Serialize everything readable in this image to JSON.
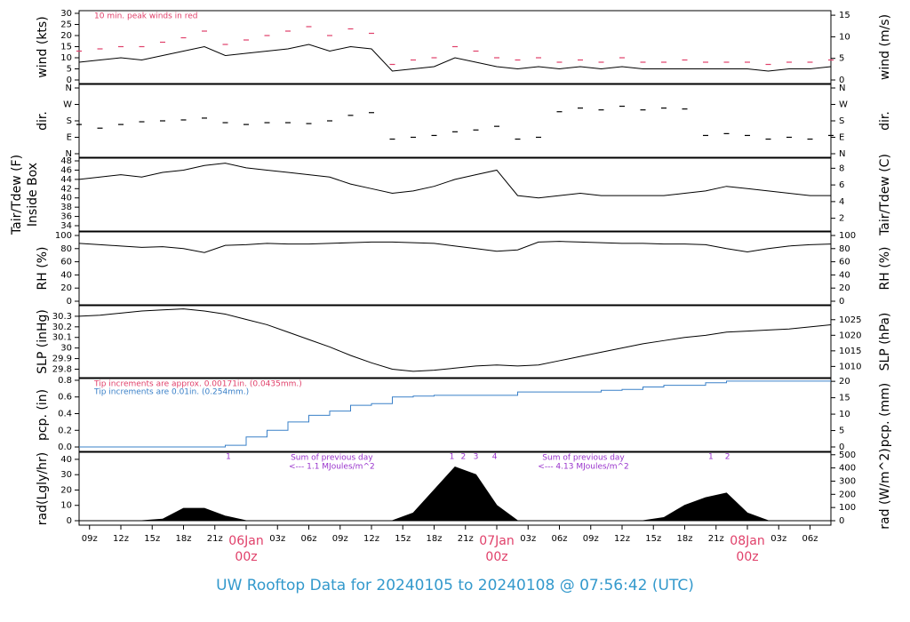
{
  "title": "UW Rooftop Data for 20240105  to  20240108 @ 07:56:42  (UTC)",
  "chart_data": [
    {
      "type": "line",
      "ylabel": [
        "wind (kts)"
      ],
      "y2label": "wind (m/s)",
      "ylim": [
        -1.6,
        31.2
      ],
      "yticks": [
        0,
        5,
        10,
        15,
        20,
        25,
        30
      ],
      "y2lim": [
        -0.82,
        16.05
      ],
      "y2ticks": [
        0,
        5,
        10,
        15
      ],
      "xlim": [
        8,
        80
      ],
      "annotations": [
        {
          "text": "10 min. peak winds in red",
          "color": "#e0406a"
        }
      ],
      "series": [
        {
          "name": "wind",
          "type": "line",
          "color": "#000000",
          "x": [
            8,
            10,
            12,
            14,
            16,
            18,
            20,
            22,
            24,
            26,
            28,
            30,
            32,
            34,
            36,
            38,
            40,
            42,
            44,
            46,
            48,
            50,
            52,
            54,
            56,
            58,
            60,
            62,
            64,
            66,
            68,
            70,
            72,
            74,
            76,
            78,
            80
          ],
          "values": [
            8,
            9,
            10,
            9,
            11,
            13,
            15,
            11,
            12,
            13,
            14,
            16,
            13,
            15,
            14,
            4,
            5,
            6,
            10,
            8,
            6,
            5,
            6,
            5,
            6,
            5,
            6,
            5,
            5,
            5,
            5,
            5,
            5,
            4,
            5,
            5,
            6
          ]
        },
        {
          "name": "peak",
          "type": "dash",
          "color": "#e0406a",
          "x": [
            8,
            10,
            12,
            14,
            16,
            18,
            20,
            22,
            24,
            26,
            28,
            30,
            32,
            34,
            36,
            38,
            40,
            42,
            44,
            46,
            48,
            50,
            52,
            54,
            56,
            58,
            60,
            62,
            64,
            66,
            68,
            70,
            72,
            74,
            76,
            78,
            80
          ],
          "values": [
            13,
            14,
            15,
            15,
            17,
            19,
            22,
            16,
            18,
            20,
            22,
            24,
            20,
            23,
            21,
            7,
            9,
            10,
            15,
            13,
            10,
            9,
            10,
            8,
            9,
            8,
            10,
            8,
            8,
            9,
            8,
            8,
            8,
            7,
            8,
            8,
            9
          ]
        }
      ]
    },
    {
      "type": "scatter",
      "ylabel": [
        "dir."
      ],
      "y2label": "dir.",
      "ylim": [
        -19.5,
        379.5
      ],
      "yticks": [
        {
          "value": 0,
          "label": "N"
        },
        {
          "value": 90,
          "label": "E"
        },
        {
          "value": 180,
          "label": "S"
        },
        {
          "value": 270,
          "label": "W"
        },
        {
          "value": 360,
          "label": "N"
        }
      ],
      "y2lim": [
        -19.5,
        379.5
      ],
      "y2ticks": [
        {
          "value": 0,
          "label": "N"
        },
        {
          "value": 90,
          "label": "E"
        },
        {
          "value": 180,
          "label": "S"
        },
        {
          "value": 270,
          "label": "W"
        },
        {
          "value": 360,
          "label": "N"
        }
      ],
      "xlim": [
        8,
        80
      ],
      "series": [
        {
          "name": "dir",
          "type": "dash",
          "color": "#000000",
          "x": [
            8,
            10,
            12,
            14,
            16,
            18,
            20,
            22,
            24,
            26,
            28,
            30,
            32,
            34,
            36,
            38,
            40,
            42,
            44,
            46,
            48,
            50,
            52,
            54,
            56,
            58,
            60,
            62,
            64,
            66,
            68,
            70,
            72,
            74,
            76,
            78,
            80
          ],
          "values": [
            160,
            140,
            160,
            175,
            180,
            185,
            195,
            170,
            160,
            170,
            170,
            165,
            180,
            210,
            225,
            80,
            90,
            100,
            120,
            130,
            150,
            80,
            90,
            230,
            250,
            240,
            260,
            240,
            250,
            245,
            100,
            110,
            100,
            80,
            90,
            80,
            100
          ]
        }
      ]
    },
    {
      "type": "line",
      "ylabel": [
        "Tair/Tdew (F)",
        "Inside Box"
      ],
      "y2label": "Tair/Tdew (C)",
      "ylim": [
        32.85,
        48.58
      ],
      "yticks": [
        34,
        36,
        38,
        40,
        42,
        44,
        46,
        48
      ],
      "y2lim": [
        0.47,
        9.21
      ],
      "y2ticks": [
        2,
        4,
        6,
        8
      ],
      "xlim": [
        8,
        80
      ],
      "series": [
        {
          "name": "temperature",
          "type": "line",
          "color": "#000000",
          "x": [
            8,
            10,
            12,
            14,
            16,
            18,
            20,
            22,
            24,
            26,
            28,
            30,
            32,
            34,
            36,
            38,
            40,
            42,
            44,
            46,
            48,
            50,
            52,
            54,
            56,
            58,
            60,
            62,
            64,
            66,
            68,
            70,
            72,
            74,
            76,
            78,
            80
          ],
          "values": [
            44,
            44.5,
            45,
            44.5,
            45.5,
            46,
            47,
            47.5,
            46.5,
            46,
            45.5,
            45,
            44.5,
            43,
            42,
            41,
            41.5,
            42.5,
            44,
            45,
            46,
            40.5,
            40,
            40.5,
            41,
            40.5,
            40.5,
            40.5,
            40.5,
            41,
            41.5,
            42.5,
            42,
            41.5,
            41,
            40.5,
            40.5
          ]
        }
      ]
    },
    {
      "type": "line",
      "ylabel": [
        "RH (%)"
      ],
      "y2label": "RH (%)",
      "ylim": [
        -5.4,
        105.4
      ],
      "yticks": [
        0,
        20,
        40,
        60,
        80,
        100
      ],
      "y2lim": [
        -5.4,
        105.4
      ],
      "y2ticks": [
        0,
        20,
        40,
        60,
        80,
        100
      ],
      "xlim": [
        8,
        80
      ],
      "series": [
        {
          "name": "rh",
          "type": "line",
          "color": "#000000",
          "x": [
            8,
            10,
            12,
            14,
            16,
            18,
            20,
            22,
            24,
            26,
            28,
            30,
            32,
            34,
            36,
            38,
            40,
            42,
            44,
            46,
            48,
            50,
            52,
            54,
            56,
            58,
            60,
            62,
            64,
            66,
            68,
            70,
            72,
            74,
            76,
            78,
            80
          ],
          "values": [
            88,
            86,
            84,
            82,
            83,
            80,
            74,
            85,
            86,
            88,
            87,
            87,
            88,
            89,
            90,
            90,
            89,
            88,
            84,
            80,
            76,
            78,
            90,
            91,
            90,
            89,
            88,
            88,
            87,
            87,
            86,
            80,
            75,
            80,
            84,
            86,
            87
          ]
        }
      ]
    },
    {
      "type": "line",
      "ylabel": [
        "SLP (inHg)"
      ],
      "y2label": "SLP (hPa)",
      "ylim": [
        29.72,
        30.4
      ],
      "yticks": [
        29.8,
        29.9,
        30,
        30.1,
        30.2,
        30.3
      ],
      "y2lim": [
        1006.4,
        1029.5
      ],
      "y2ticks": [
        1010,
        1015,
        1020,
        1025
      ],
      "xlim": [
        8,
        80
      ],
      "series": [
        {
          "name": "slp",
          "type": "line",
          "color": "#000000",
          "x": [
            8,
            10,
            12,
            14,
            16,
            18,
            20,
            22,
            24,
            26,
            28,
            30,
            32,
            34,
            36,
            38,
            40,
            42,
            44,
            46,
            48,
            50,
            52,
            54,
            56,
            58,
            60,
            62,
            64,
            66,
            68,
            70,
            72,
            74,
            76,
            78,
            80
          ],
          "values": [
            30.3,
            30.31,
            30.33,
            30.35,
            30.36,
            30.37,
            30.35,
            30.32,
            30.27,
            30.22,
            30.15,
            30.08,
            30.01,
            29.93,
            29.86,
            29.8,
            29.78,
            29.79,
            29.81,
            29.83,
            29.84,
            29.83,
            29.84,
            29.88,
            29.92,
            29.96,
            30,
            30.04,
            30.07,
            30.1,
            30.12,
            30.15,
            30.16,
            30.17,
            30.18,
            30.2,
            30.22
          ]
        }
      ]
    },
    {
      "type": "line",
      "ylabel": [
        "pcp. (in)"
      ],
      "y2label": "pcp. (mm)",
      "ylim": [
        -0.053,
        0.821
      ],
      "yticks": [
        {
          "value": 0,
          "label": "0.0"
        },
        0.2,
        0.4,
        0.6,
        0.8
      ],
      "y2lim": [
        -1.35,
        20.85
      ],
      "y2ticks": [
        0,
        5,
        10,
        15,
        20
      ],
      "xlim": [
        8,
        80
      ],
      "annotations": [
        {
          "text": "Tip increments are approx. 0.00171in. (0.0435mm.)",
          "color": "#e0406a"
        },
        {
          "text": "Tip increments are 0.01in. (0.254mm.)",
          "color": "#3a80c8"
        }
      ],
      "series": [
        {
          "name": "pcp",
          "type": "step",
          "color": "#3a80c8",
          "x": [
            8,
            10,
            12,
            14,
            16,
            18,
            20,
            22,
            24,
            26,
            28,
            30,
            32,
            34,
            36,
            38,
            40,
            42,
            44,
            46,
            48,
            50,
            52,
            54,
            56,
            58,
            60,
            62,
            64,
            66,
            68,
            70,
            72,
            74,
            76,
            78,
            80
          ],
          "values": [
            0,
            0,
            0,
            0,
            0,
            0,
            0,
            0.02,
            0.12,
            0.2,
            0.3,
            0.38,
            0.43,
            0.5,
            0.52,
            0.6,
            0.61,
            0.62,
            0.62,
            0.62,
            0.62,
            0.66,
            0.66,
            0.66,
            0.66,
            0.68,
            0.69,
            0.72,
            0.74,
            0.74,
            0.77,
            0.79,
            0.79,
            0.79,
            0.79,
            0.79,
            0.79
          ]
        }
      ]
    },
    {
      "type": "area",
      "ylabel": [
        "rad(Lgly/hr)"
      ],
      "y2label": "rad (W/m^2)",
      "ylim": [
        -2.9,
        44.6
      ],
      "yticks": [
        0,
        10,
        20,
        30,
        40
      ],
      "y2lim": [
        -33.7,
        518.7
      ],
      "y2ticks": [
        0,
        100,
        200,
        300,
        400,
        500
      ],
      "xlim": [
        8,
        80
      ],
      "xticks": [
        {
          "value": 9,
          "label": "09z"
        },
        {
          "value": 12,
          "label": "12z"
        },
        {
          "value": 15,
          "label": "15z"
        },
        {
          "value": 18,
          "label": "18z"
        },
        {
          "value": 21,
          "label": "21z"
        },
        {
          "value": 27,
          "label": "03z"
        },
        {
          "value": 30,
          "label": "06z"
        },
        {
          "value": 33,
          "label": "09z"
        },
        {
          "value": 36,
          "label": "12z"
        },
        {
          "value": 39,
          "label": "15z"
        },
        {
          "value": 42,
          "label": "18z"
        },
        {
          "value": 45,
          "label": "21z"
        },
        {
          "value": 51,
          "label": "03z"
        },
        {
          "value": 54,
          "label": "06z"
        },
        {
          "value": 57,
          "label": "09z"
        },
        {
          "value": 60,
          "label": "12z"
        },
        {
          "value": 63,
          "label": "15z"
        },
        {
          "value": 66,
          "label": "18z"
        },
        {
          "value": 69,
          "label": "21z"
        },
        {
          "value": 75,
          "label": "03z"
        },
        {
          "value": 78,
          "label": "06z"
        }
      ],
      "day_ticks": [
        {
          "value": 24,
          "date": "06Jan",
          "label": "00z"
        },
        {
          "value": 48,
          "date": "07Jan",
          "label": "00z"
        },
        {
          "value": 72,
          "date": "08Jan",
          "label": "00z"
        }
      ],
      "markers": [
        {
          "x": 22.3,
          "label": "1"
        },
        {
          "x": 43.7,
          "label": "1"
        },
        {
          "x": 44.8,
          "label": "2"
        },
        {
          "x": 46,
          "label": "3"
        },
        {
          "x": 47.8,
          "label": "4"
        },
        {
          "x": 68.5,
          "label": "1"
        },
        {
          "x": 70.1,
          "label": "2"
        }
      ],
      "notes": [
        {
          "x": 32.2,
          "lines": [
            "Sum of previous day",
            "<--- 1.1 MJoules/m^2"
          ]
        },
        {
          "x": 56.3,
          "lines": [
            "Sum of previous day",
            "<--- 4.13 MJoules/m^2"
          ]
        }
      ],
      "series": [
        {
          "name": "rad",
          "type": "area",
          "color": "#000000",
          "x": [
            8,
            10,
            12,
            14,
            16,
            18,
            20,
            22,
            24,
            26,
            28,
            30,
            32,
            34,
            36,
            38,
            40,
            42,
            44,
            46,
            48,
            50,
            52,
            54,
            56,
            58,
            60,
            62,
            64,
            66,
            68,
            70,
            72,
            74,
            76,
            78,
            80
          ],
          "values": [
            0,
            0,
            0,
            0,
            1,
            8,
            8,
            3,
            0,
            0,
            0,
            0,
            0,
            0,
            0,
            0,
            5,
            20,
            35,
            30,
            10,
            0,
            0,
            0,
            0,
            0,
            0,
            0,
            2,
            10,
            15,
            18,
            5,
            0,
            0,
            0,
            0
          ]
        }
      ]
    }
  ]
}
